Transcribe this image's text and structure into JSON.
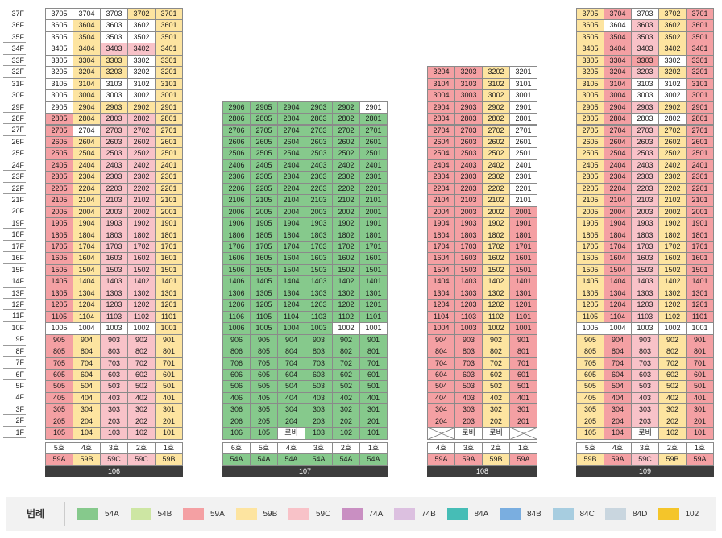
{
  "floors": [
    "37F",
    "36F",
    "35F",
    "34F",
    "33F",
    "32F",
    "31F",
    "30F",
    "29F",
    "28F",
    "27F",
    "26F",
    "25F",
    "24F",
    "23F",
    "22F",
    "21F",
    "20F",
    "19F",
    "18F",
    "17F",
    "16F",
    "15F",
    "14F",
    "13F",
    "12F",
    "11F",
    "10F",
    "9F",
    "8F",
    "7F",
    "6F",
    "5F",
    "4F",
    "3F",
    "2F",
    "1F"
  ],
  "colors": {
    "54A": "#86c98c",
    "59A": "#f4a0a3",
    "59B": "#fde4a0",
    "59C": "#f8c2c8",
    "white": "#ffffff"
  },
  "buildings": [
    {
      "id": "106",
      "top_floor": 37,
      "line_labels": [
        "5호",
        "4호",
        "3호",
        "2호",
        "1호"
      ],
      "line_types": [
        "59A",
        "59B",
        "59C",
        "59C",
        "59B"
      ],
      "lines": [
        "05",
        "04",
        "03",
        "02",
        "01"
      ],
      "special": {
        "1004": "white",
        "1005": "white",
        "1003": "white",
        "1002": "white",
        "2704": "white",
        "2905": "white",
        "3703": "white",
        "3702": "59B",
        "3705": "white",
        "3704": "white",
        "3605": "white",
        "3603": "white",
        "3602": "white",
        "3505": "white",
        "3503": "white",
        "3502": "white",
        "3405": "white",
        "3403": "59C",
        "3402": "59C",
        "3305": "white",
        "3303": "59B",
        "3302": "white",
        "3205": "white",
        "3203": "59B",
        "3202": "white",
        "3105": "white",
        "3103": "white",
        "3102": "white",
        "3005": "white",
        "3003": "white",
        "3002": "white",
        "2903": "59B",
        "2902": "59B"
      },
      "overrides_1f": {
        "105": "105",
        "104": "104",
        "103": "103",
        "102": "102",
        "101": "101"
      }
    },
    {
      "id": "107",
      "top_floor": 29,
      "line_labels": [
        "6호",
        "5호",
        "4호",
        "3호",
        "2호",
        "1호"
      ],
      "line_types": [
        "54A",
        "54A",
        "54A",
        "54A",
        "54A",
        "54A"
      ],
      "lines": [
        "06",
        "05",
        "04",
        "03",
        "02",
        "01"
      ],
      "special": {
        "2901": "white",
        "1002": "white",
        "1001": "white"
      },
      "lobby_1f": [
        "104"
      ],
      "lobby_label": "로비"
    },
    {
      "id": "108",
      "top_floor": 32,
      "line_labels": [
        "4호",
        "3호",
        "2호",
        "1호"
      ],
      "line_types": [
        "59A",
        "59A",
        "59B",
        "59A"
      ],
      "lines": [
        "04",
        "03",
        "02",
        "01"
      ],
      "special": {
        "3201": "white",
        "3101": "white",
        "3001": "white",
        "2901": "white",
        "2801": "white",
        "2701": "white",
        "2601": "white",
        "2501": "white",
        "2401": "white",
        "2301": "white",
        "2201": "white",
        "2101": "white"
      },
      "x_1f": [
        "104",
        "101"
      ],
      "lobby_1f": [
        "103",
        "102"
      ],
      "lobby_label": "로비"
    },
    {
      "id": "109",
      "top_floor": 37,
      "line_labels": [
        "5호",
        "4호",
        "3호",
        "2호",
        "1호"
      ],
      "line_types": [
        "59B",
        "59A",
        "59C",
        "59B",
        "59A"
      ],
      "lines": [
        "05",
        "04",
        "03",
        "02",
        "01"
      ],
      "special": {
        "3604": "white",
        "3703": "white",
        "3304": "59A",
        "3303": "59A",
        "3302": "white",
        "3103": "white",
        "3102": "white",
        "3003": "white",
        "3002": "white",
        "2803": "white",
        "2802": "white",
        "1002": "white",
        "1003": "white",
        "1001": "white",
        "1005": "white",
        "1004": "white"
      },
      "lobby_1f": [
        "103"
      ],
      "lobby_label": "로비"
    }
  ],
  "legend": {
    "title": "범례",
    "items": [
      {
        "label": "54A",
        "color": "#86c98c"
      },
      {
        "label": "54B",
        "color": "#cde6a3"
      },
      {
        "label": "59A",
        "color": "#f4a0a3"
      },
      {
        "label": "59B",
        "color": "#fde4a0"
      },
      {
        "label": "59C",
        "color": "#f8c2c8"
      },
      {
        "label": "74A",
        "color": "#c98fc2"
      },
      {
        "label": "74B",
        "color": "#dcc0e0"
      },
      {
        "label": "84A",
        "color": "#46bdb6"
      },
      {
        "label": "84B",
        "color": "#7aaee0"
      },
      {
        "label": "84C",
        "color": "#a7cde0"
      },
      {
        "label": "84D",
        "color": "#c9d6df"
      },
      {
        "label": "102",
        "color": "#f4c52a"
      }
    ]
  }
}
